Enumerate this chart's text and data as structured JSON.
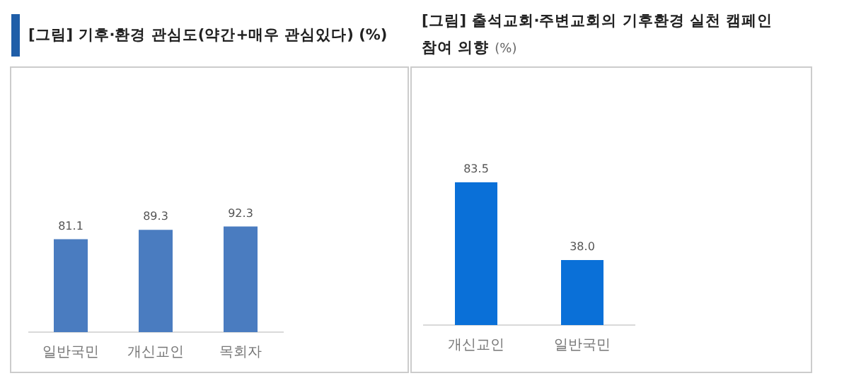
{
  "chart_data": [
    {
      "type": "bar",
      "title": "[그림] 기후·환경 관심도(약간+매우 관심있다) (%)",
      "categories": [
        "일반국민",
        "개신교인",
        "목회자"
      ],
      "values": [
        81.1,
        89.3,
        92.3
      ],
      "value_labels": [
        "81.1",
        "89.3",
        "92.3"
      ],
      "color": "#4a7cc0",
      "grid": false,
      "legend": false,
      "tick_labels": "x"
    },
    {
      "type": "bar",
      "title": "[그림] 출석교회·주변교회의 기후환경 실천 캠페인 참여 의향",
      "subtitle": "(%)",
      "categories": [
        "개신교인",
        "일반국민"
      ],
      "values": [
        83.5,
        38.0
      ],
      "value_labels": [
        "83.5",
        "38.0"
      ],
      "color": "#0a70d8",
      "grid": false,
      "legend": false,
      "tick_labels": "x"
    }
  ]
}
